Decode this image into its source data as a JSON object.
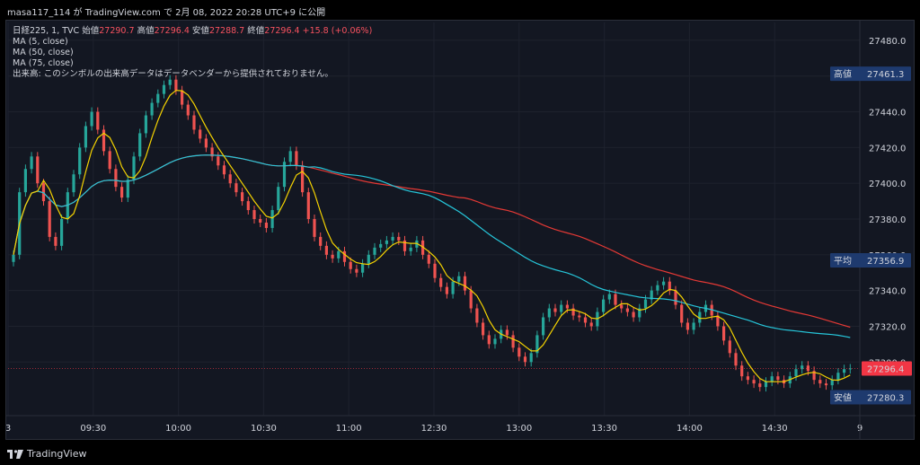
{
  "header": {
    "caption": "masa117_114 が TradingView.com で 2月 08, 2022 20:28 UTC+9 に公開"
  },
  "legend": {
    "symbol": "日経225, 1, TVC",
    "open_label": "始値",
    "open": "27290.7",
    "high_label": "高値",
    "high": "27296.4",
    "low_label": "安値",
    "low": "27288.7",
    "close_label": "終値",
    "close": "27296.4",
    "change": "+15.8 (+0.06%)",
    "ma5": "MA (5, close)",
    "ma50": "MA (50, close)",
    "ma75": "MA (75, close)",
    "volume_note": "出来高: このシンボルの出来高データはデータベンダーから提供されておりません。"
  },
  "footer": {
    "brand": "TradingView"
  },
  "colors": {
    "up": "#26a69a",
    "down": "#ef5350",
    "ma5": "#f5d300",
    "ma50": "#26c6da",
    "ma75": "#e53935",
    "background": "#131722"
  },
  "chart_data": {
    "type": "candlestick",
    "x_ticks": [
      "3",
      "09:30",
      "10:00",
      "10:30",
      "11:00",
      "12:30",
      "13:00",
      "13:30",
      "14:00",
      "14:30",
      "9"
    ],
    "y_ticks": [
      "27480.0",
      "27460.0",
      "27440.0",
      "27420.0",
      "27400.0",
      "27380.0",
      "27360.0",
      "27340.0",
      "27320.0",
      "27300.0"
    ],
    "ylim": [
      27270,
      27490
    ],
    "price_labels": [
      {
        "label": "高値",
        "value": "27461.3",
        "price": 27461.3,
        "color": "#1e3a6e"
      },
      {
        "label": "平均",
        "value": "27356.9",
        "price": 27356.9,
        "color": "#1e3a6e"
      },
      {
        "label": "",
        "value": "27296.4",
        "price": 27296.4,
        "color": "#f23645"
      },
      {
        "label": "安値",
        "value": "27280.3",
        "price": 27280.3,
        "color": "#1e3a6e"
      }
    ],
    "last_price": 27296.4,
    "close_series": [
      27360,
      27395,
      27408,
      27415,
      27400,
      27390,
      27370,
      27365,
      27380,
      27395,
      27405,
      27420,
      27432,
      27440,
      27430,
      27418,
      27408,
      27398,
      27392,
      27402,
      27415,
      27428,
      27438,
      27445,
      27450,
      27455,
      27458,
      27452,
      27444,
      27438,
      27430,
      27425,
      27420,
      27415,
      27410,
      27405,
      27400,
      27395,
      27390,
      27385,
      27380,
      27378,
      27375,
      27385,
      27398,
      27412,
      27418,
      27410,
      27395,
      27380,
      27370,
      27365,
      27360,
      27358,
      27362,
      27356,
      27352,
      27350,
      27355,
      27360,
      27364,
      27366,
      27368,
      27370,
      27368,
      27362,
      27364,
      27368,
      27360,
      27355,
      27347,
      27342,
      27338,
      27345,
      27348,
      27340,
      27330,
      27322,
      27315,
      27310,
      27313,
      27318,
      27315,
      27308,
      27303,
      27300,
      27305,
      27315,
      27325,
      27330,
      27328,
      27332,
      27330,
      27326,
      27325,
      27322,
      27320,
      27328,
      27335,
      27338,
      27332,
      27330,
      27328,
      27325,
      27330,
      27335,
      27340,
      27343,
      27345,
      27340,
      27332,
      27322,
      27318,
      27322,
      27328,
      27332,
      27326,
      27320,
      27312,
      27305,
      27298,
      27292,
      27290,
      27288,
      27286,
      27289,
      27292,
      27290,
      27288,
      27292,
      27296,
      27298,
      27295,
      27290,
      27288,
      27287,
      27290,
      27294,
      27296,
      27296.4
    ],
    "ma5_desc": "5-period moving average of close",
    "ma50_desc": "50-period moving average of close",
    "ma75_desc": "75-period moving average of close"
  }
}
